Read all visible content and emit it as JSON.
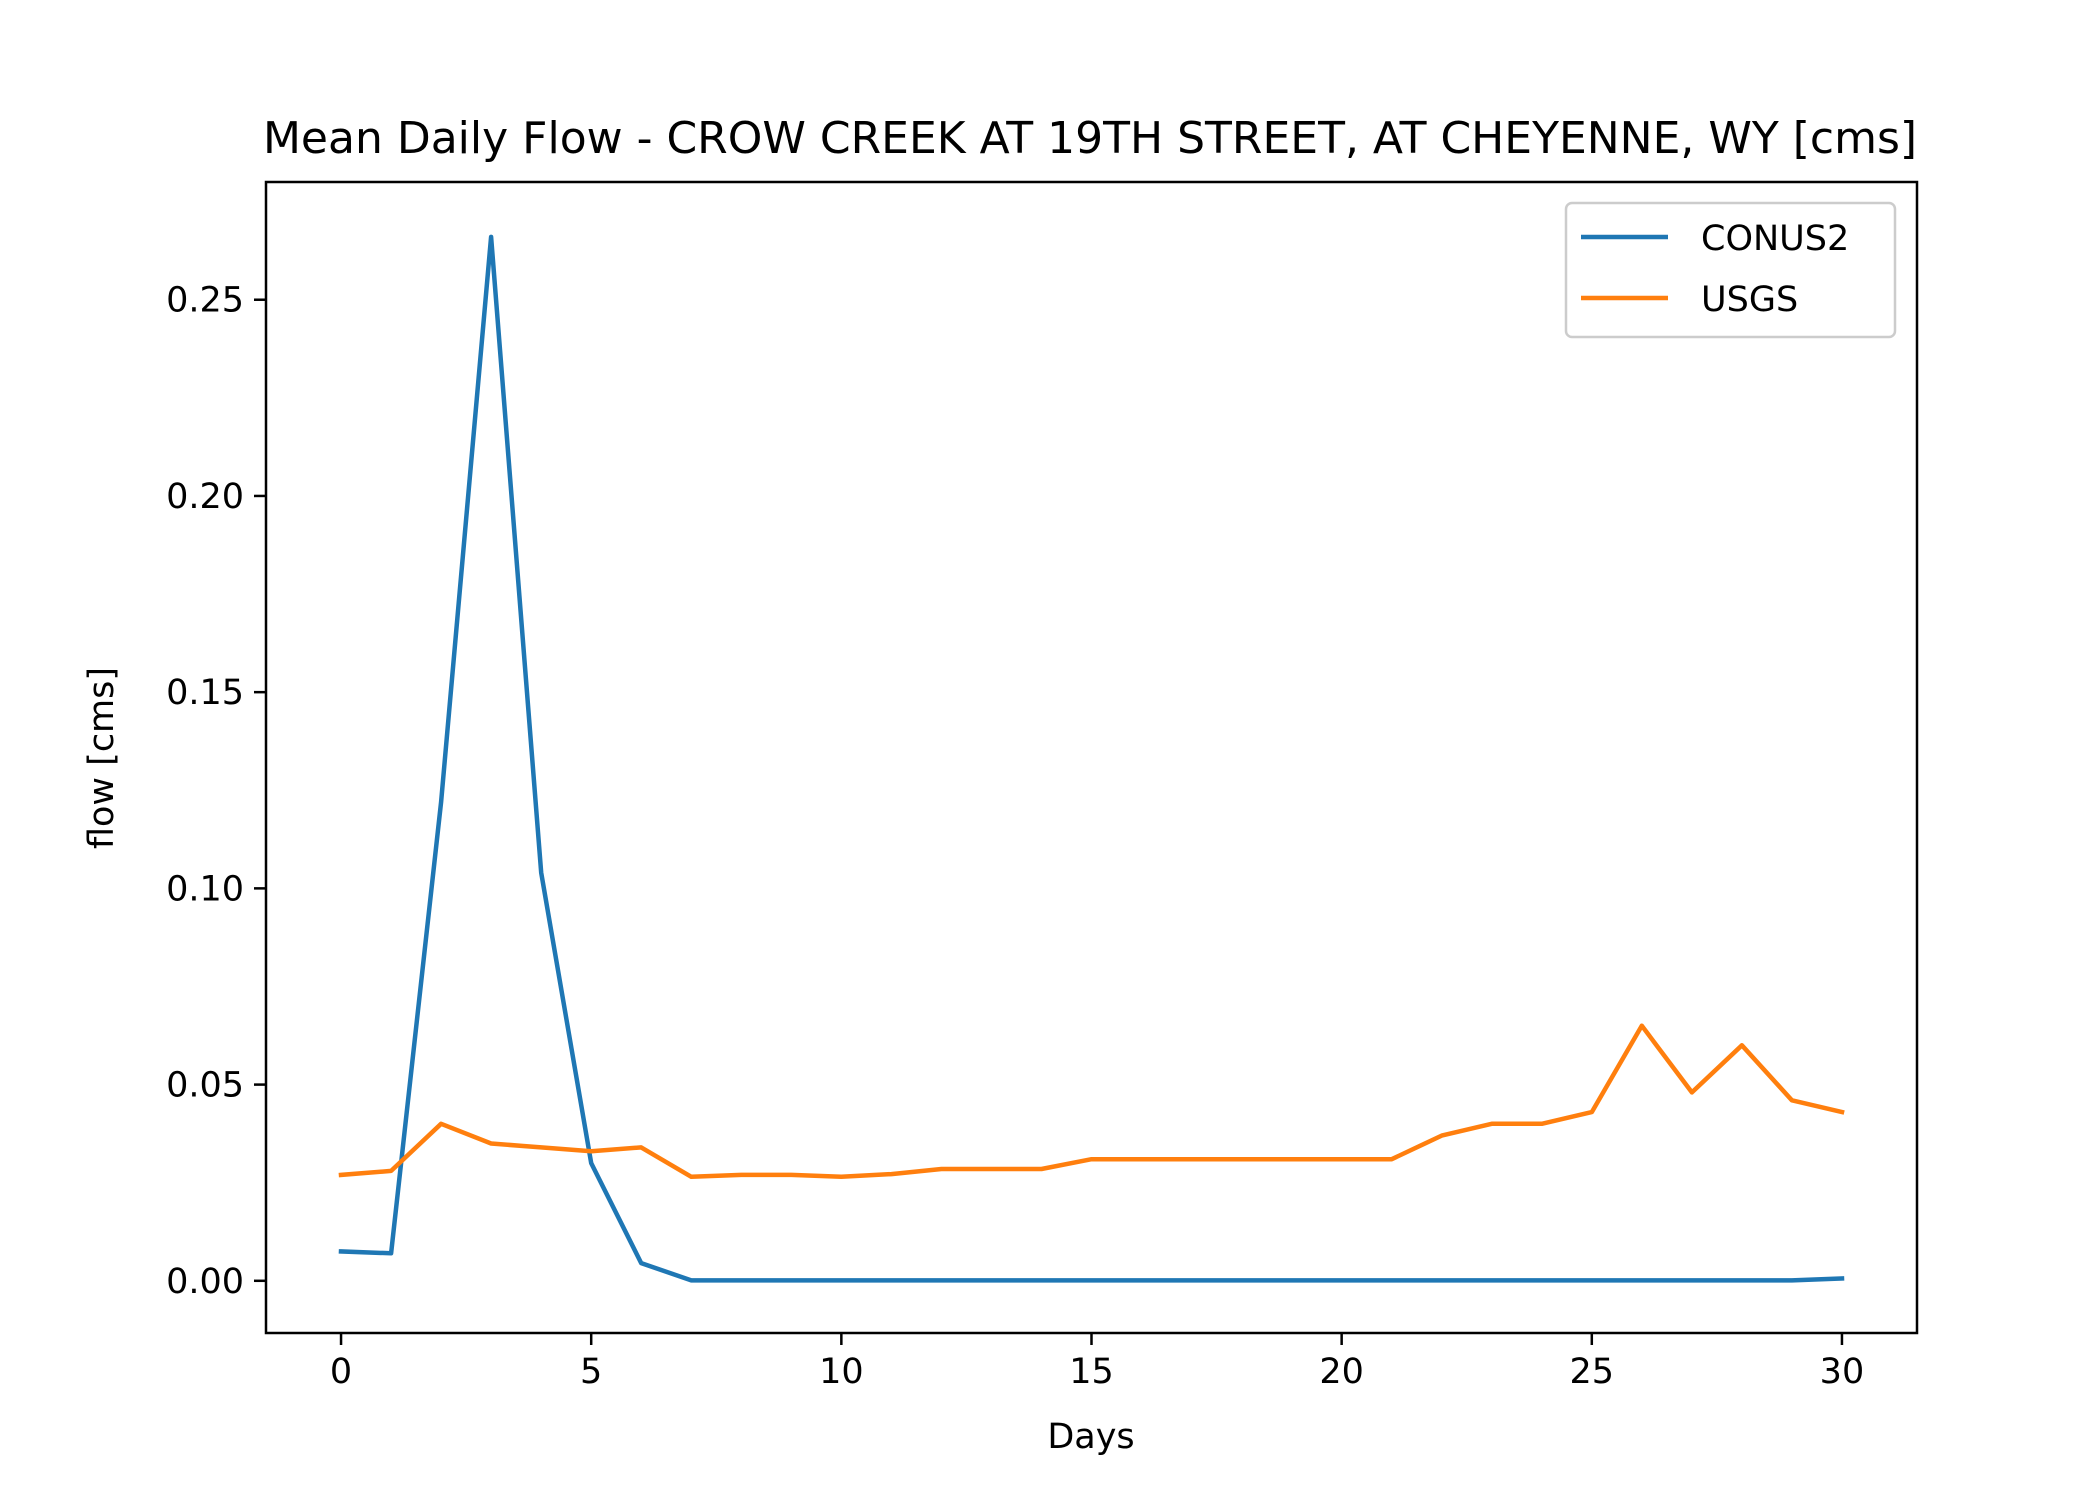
{
  "chart_data": {
    "type": "line",
    "title": "Mean Daily Flow - CROW CREEK AT 19TH STREET, AT CHEYENNE, WY [cms]",
    "xlabel": "Days",
    "ylabel": "flow [cms]",
    "xlim": [
      -1.5,
      31.5
    ],
    "ylim": [
      -0.0133,
      0.28
    ],
    "xticks": [
      0,
      5,
      10,
      15,
      20,
      25,
      30
    ],
    "xtick_labels": [
      "0",
      "5",
      "10",
      "15",
      "20",
      "25",
      "30"
    ],
    "yticks": [
      0.0,
      0.05,
      0.1,
      0.15,
      0.2,
      0.25
    ],
    "ytick_labels": [
      "0.00",
      "0.05",
      "0.10",
      "0.15",
      "0.20",
      "0.25"
    ],
    "grid": false,
    "legend_position": "top-right",
    "x": [
      0,
      1,
      2,
      3,
      4,
      5,
      6,
      7,
      8,
      9,
      10,
      11,
      12,
      13,
      14,
      15,
      16,
      17,
      18,
      19,
      20,
      21,
      22,
      23,
      24,
      25,
      26,
      27,
      28,
      29,
      30
    ],
    "series": [
      {
        "name": "CONUS2",
        "color": "#1f77b4",
        "values": [
          0.0075,
          0.007,
          0.122,
          0.266,
          0.104,
          0.03,
          0.0045,
          0.0001,
          0.0001,
          0.0001,
          0.0001,
          0.0001,
          0.0001,
          0.0001,
          0.0001,
          0.0001,
          0.0001,
          0.0001,
          0.0001,
          0.0001,
          0.0001,
          0.0001,
          0.0001,
          0.0001,
          0.0001,
          0.0001,
          0.0001,
          0.0001,
          0.0001,
          0.0001,
          0.0006
        ]
      },
      {
        "name": "USGS",
        "color": "#ff7f0e",
        "values": [
          0.027,
          0.028,
          0.04,
          0.035,
          0.034,
          0.033,
          0.034,
          0.0265,
          0.027,
          0.027,
          0.0265,
          0.0272,
          0.0285,
          0.0285,
          0.0285,
          0.031,
          0.031,
          0.031,
          0.031,
          0.031,
          0.031,
          0.031,
          0.037,
          0.04,
          0.04,
          0.043,
          0.065,
          0.048,
          0.06,
          0.046,
          0.043
        ]
      }
    ]
  }
}
